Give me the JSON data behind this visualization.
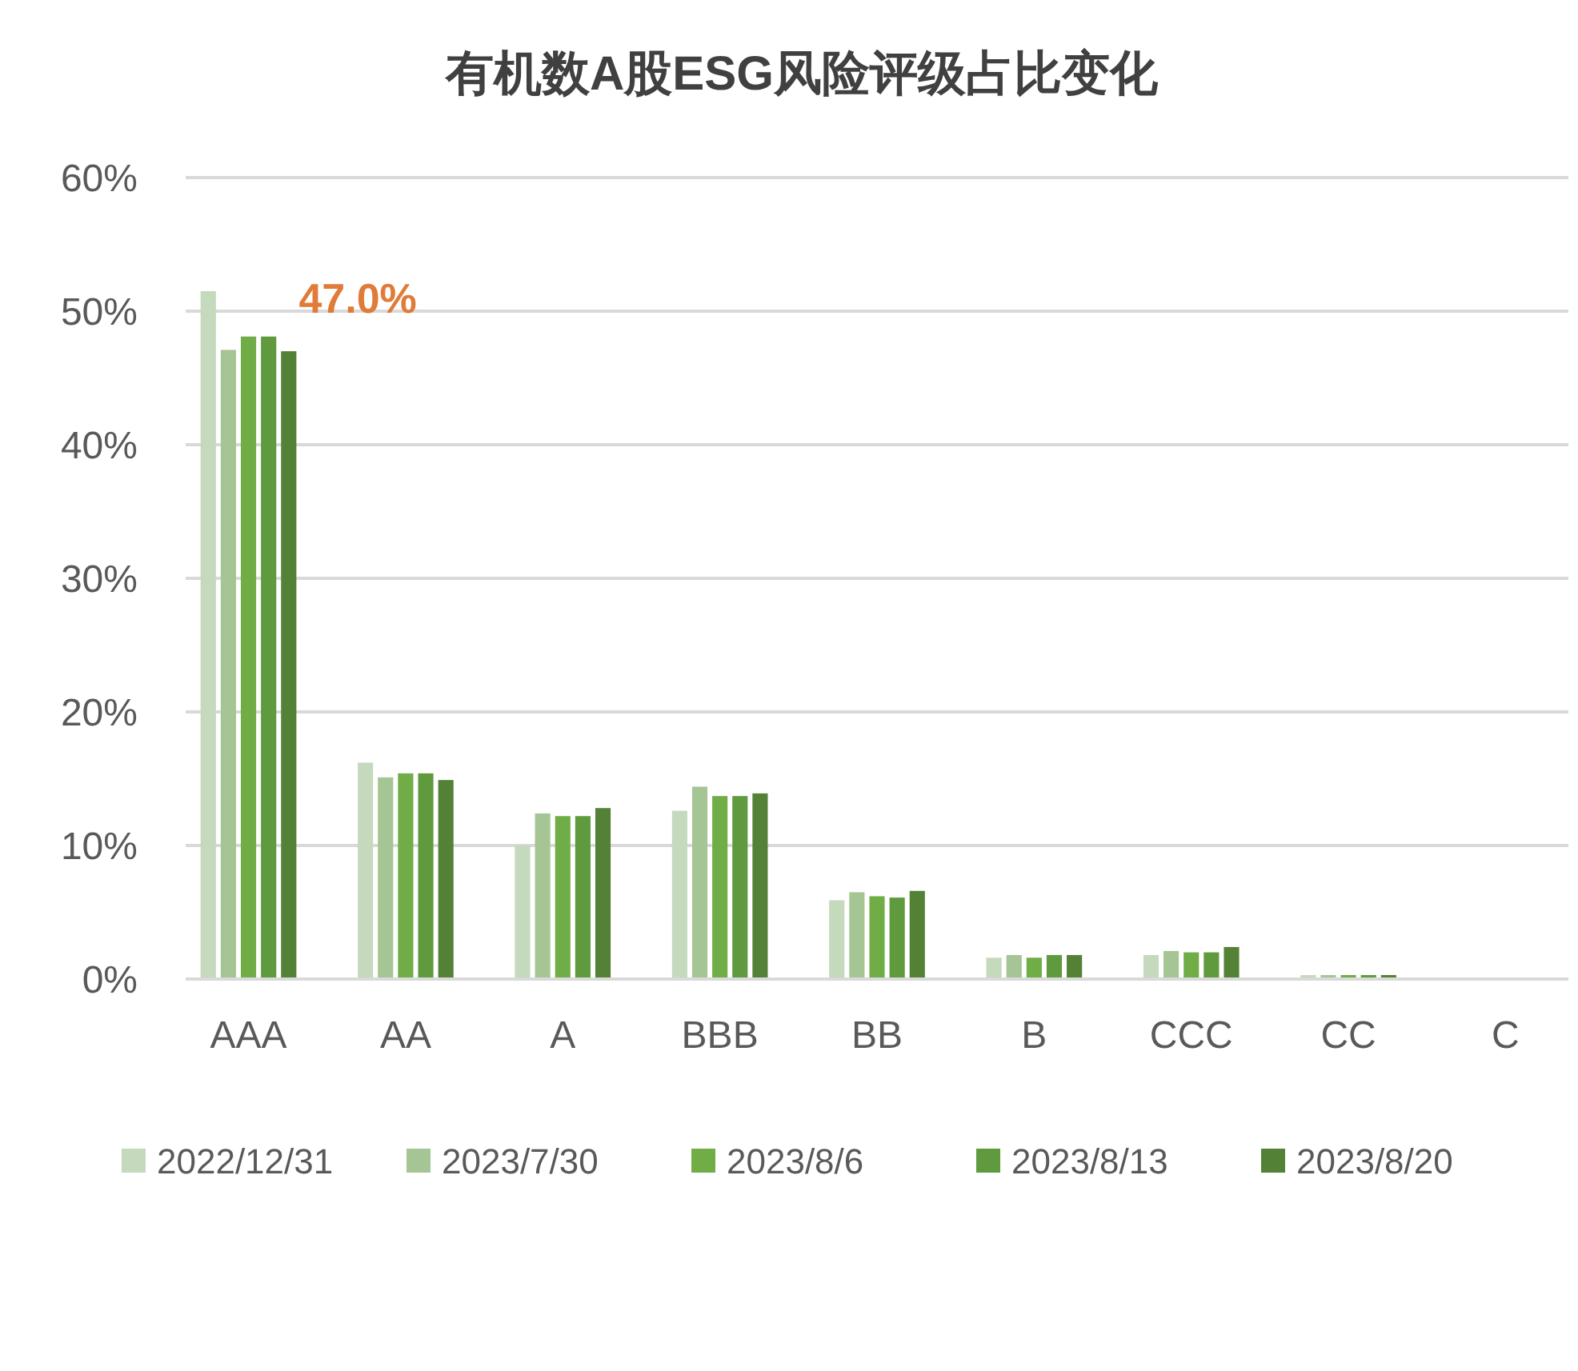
{
  "chart_data": {
    "type": "bar",
    "title": "有机数A股ESG风险评级占比变化",
    "categories": [
      "AAA",
      "AA",
      "A",
      "BBB",
      "BB",
      "B",
      "CCC",
      "CC",
      "C"
    ],
    "series": [
      {
        "name": "2022/12/31",
        "color": "#c5d9bd",
        "values": [
          51.5,
          16.2,
          10.0,
          12.6,
          5.9,
          1.6,
          1.8,
          0.3,
          0
        ]
      },
      {
        "name": "2023/7/30",
        "color": "#a5c594",
        "values": [
          47.1,
          15.1,
          12.4,
          14.4,
          6.5,
          1.8,
          2.1,
          0.3,
          0
        ]
      },
      {
        "name": "2023/8/6",
        "color": "#70ad47",
        "values": [
          48.1,
          15.4,
          12.2,
          13.7,
          6.2,
          1.6,
          2.0,
          0.3,
          0
        ]
      },
      {
        "name": "2023/8/13",
        "color": "#5f9a3e",
        "values": [
          48.1,
          15.4,
          12.2,
          13.7,
          6.1,
          1.8,
          2.0,
          0.3,
          0
        ]
      },
      {
        "name": "2023/8/20",
        "color": "#538135",
        "values": [
          47.0,
          14.9,
          12.8,
          13.9,
          6.6,
          1.8,
          2.4,
          0.3,
          0
        ]
      }
    ],
    "ylim": [
      0,
      60
    ],
    "yticks": [
      {
        "value": 0,
        "label": "0%"
      },
      {
        "value": 10,
        "label": "10%"
      },
      {
        "value": 20,
        "label": "20%"
      },
      {
        "value": 30,
        "label": "30%"
      },
      {
        "value": 40,
        "label": "40%"
      },
      {
        "value": 50,
        "label": "50%"
      },
      {
        "value": 60,
        "label": "60%"
      }
    ],
    "grid": "y",
    "legend": "bottom",
    "annotations": [
      {
        "text": "47.0%",
        "x": "AAA",
        "y": 47
      }
    ]
  }
}
